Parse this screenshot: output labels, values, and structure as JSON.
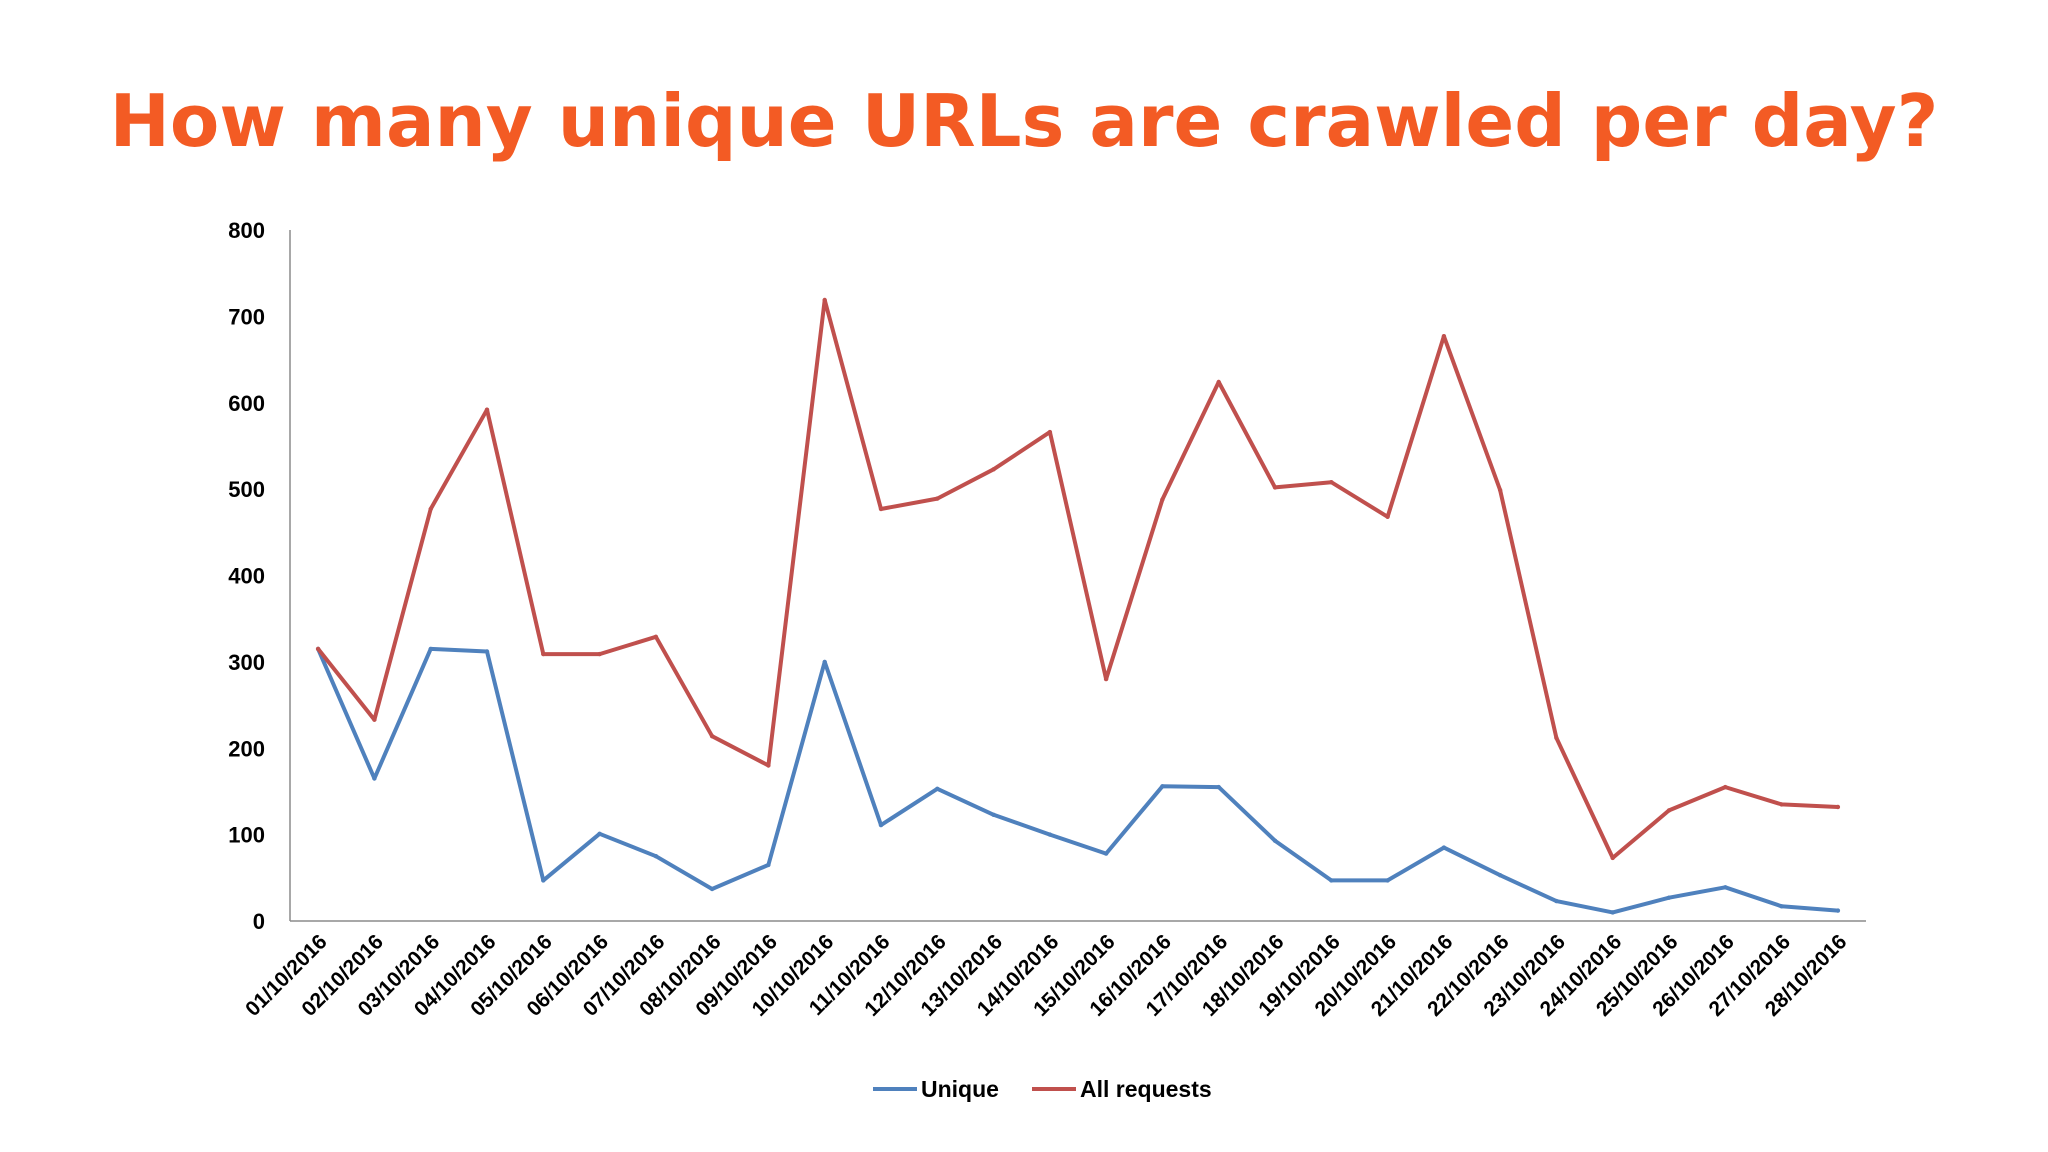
{
  "title": "How many unique URLs are crawled per day?",
  "chart_data": {
    "type": "line",
    "ylim": [
      0,
      800
    ],
    "y_ticks": [
      0,
      100,
      200,
      300,
      400,
      500,
      600,
      700,
      800
    ],
    "grid": false,
    "legend_position": "bottom",
    "categories": [
      "01/10/2016",
      "02/10/2016",
      "03/10/2016",
      "04/10/2016",
      "05/10/2016",
      "06/10/2016",
      "07/10/2016",
      "08/10/2016",
      "09/10/2016",
      "10/10/2016",
      "11/10/2016",
      "12/10/2016",
      "13/10/2016",
      "14/10/2016",
      "15/10/2016",
      "16/10/2016",
      "17/10/2016",
      "18/10/2016",
      "19/10/2016",
      "20/10/2016",
      "21/10/2016",
      "22/10/2016",
      "23/10/2016",
      "24/10/2016",
      "25/10/2016",
      "26/10/2016",
      "27/10/2016",
      "28/10/2016"
    ],
    "series": [
      {
        "name": "Unique",
        "color": "#4f81bd",
        "values": [
          315,
          165,
          315,
          312,
          47,
          101,
          75,
          37,
          65,
          300,
          111,
          153,
          123,
          100,
          78,
          156,
          155,
          93,
          47,
          47,
          85,
          53,
          23,
          10,
          27,
          39,
          17,
          12
        ]
      },
      {
        "name": "All requests",
        "color": "#c0504d",
        "values": [
          315,
          233,
          477,
          592,
          309,
          309,
          329,
          214,
          180,
          719,
          477,
          489,
          523,
          566,
          280,
          488,
          624,
          502,
          508,
          468,
          677,
          499,
          212,
          73,
          128,
          155,
          135,
          132
        ]
      }
    ]
  }
}
